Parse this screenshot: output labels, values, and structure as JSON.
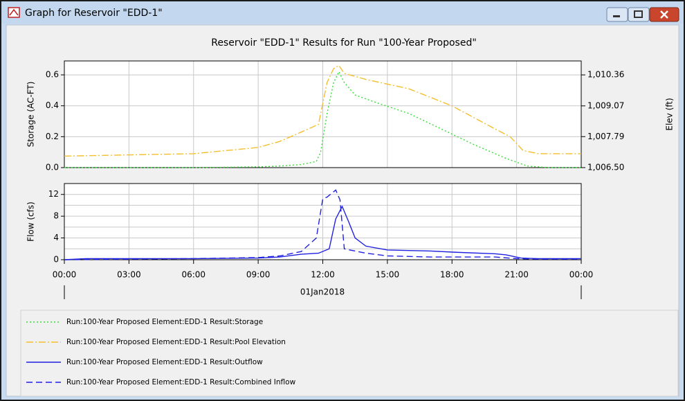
{
  "window": {
    "title": "Graph for Reservoir \"EDD-1\""
  },
  "chart_data": [
    {
      "type": "line",
      "title": "Reservoir \"EDD-1\" Results for Run \"100-Year Proposed\"",
      "y_label": "Storage (AC-FT)",
      "y2_label": "Elev (ft)",
      "xlim": [
        0,
        24
      ],
      "ylim": [
        0,
        0.69
      ],
      "yticks": [
        {
          "value": 0,
          "label": "0.0"
        },
        0.2,
        0.4,
        0.6
      ],
      "y2lim": [
        1006.5,
        1010.94
      ],
      "y2ticks": [
        {
          "value": 1006.5,
          "label": "1,006.50"
        },
        {
          "value": 1007.79,
          "label": "1,007.79"
        },
        {
          "value": 1009.07,
          "label": "1,009.07"
        },
        {
          "value": 1010.36,
          "label": "1,010.36"
        }
      ],
      "grid": true,
      "series": [
        {
          "name": "Run:100-Year Proposed Element:EDD-1 Result:Storage",
          "color": "#33dd33",
          "style": "dotted",
          "x": [
            0,
            6,
            9,
            10,
            11,
            11.7,
            11.9,
            12.2,
            12.5,
            12.75,
            13,
            13.5,
            14.5,
            16,
            17.5,
            19,
            20.5,
            21.5,
            22.5,
            24
          ],
          "values": [
            0,
            0,
            0.005,
            0.01,
            0.02,
            0.04,
            0.1,
            0.35,
            0.55,
            0.62,
            0.55,
            0.47,
            0.42,
            0.35,
            0.25,
            0.15,
            0.06,
            0.01,
            0,
            0
          ]
        },
        {
          "name": "Run:100-Year Proposed Element:EDD-1 Result:Pool Elevation",
          "color": "#f5be2c",
          "style": "dash-dot",
          "axis": "y2",
          "x": [
            0,
            6,
            9,
            10,
            11,
            11.8,
            12.2,
            12.5,
            12.75,
            13,
            14,
            16,
            18,
            20,
            20.7,
            21.3,
            22,
            24
          ],
          "values": [
            1006.98,
            1007.08,
            1007.34,
            1007.59,
            1007.98,
            1008.3,
            1010.04,
            1010.62,
            1010.75,
            1010.42,
            1010.17,
            1009.78,
            1009.07,
            1008.11,
            1007.79,
            1007.21,
            1007.08,
            1007.08
          ]
        }
      ]
    },
    {
      "type": "line",
      "y_label": "Flow (cfs)",
      "x_label": "01Jan2018",
      "xlim": [
        0,
        24
      ],
      "xticks": [
        {
          "value": 0,
          "label": "00:00"
        },
        {
          "value": 3,
          "label": "03:00"
        },
        {
          "value": 6,
          "label": "06:00"
        },
        {
          "value": 9,
          "label": "09:00"
        },
        {
          "value": 12,
          "label": "12:00"
        },
        {
          "value": 15,
          "label": "15:00"
        },
        {
          "value": 18,
          "label": "18:00"
        },
        {
          "value": 21,
          "label": "21:00"
        },
        {
          "value": 24,
          "label": "00:00"
        }
      ],
      "ylim": [
        0,
        14
      ],
      "yticks": [
        0,
        4,
        8,
        12
      ],
      "minor_yticks": [
        2,
        6,
        10
      ],
      "grid": true,
      "series": [
        {
          "name": "Run:100-Year Proposed Element:EDD-1 Result:Outflow",
          "color": "#2020e0",
          "style": "solid",
          "x": [
            0,
            1,
            6,
            9,
            10,
            11,
            11.8,
            12.3,
            12.6,
            12.9,
            13.2,
            13.5,
            14,
            15,
            17,
            18,
            20,
            20.5,
            21.2,
            22,
            24
          ],
          "values": [
            0,
            0.2,
            0.2,
            0.3,
            0.5,
            1,
            1.2,
            2,
            7.5,
            9.8,
            7,
            4,
            2.5,
            1.8,
            1.6,
            1.4,
            1.1,
            0.9,
            0.3,
            0.2,
            0.2
          ]
        },
        {
          "name": "Run:100-Year Proposed Element:EDD-1 Result:Combined Inflow",
          "color": "#2020e0",
          "style": "dashed",
          "x": [
            0,
            6,
            9,
            10,
            11,
            11.7,
            12,
            12.2,
            12.6,
            12.8,
            13,
            14,
            15,
            17,
            20,
            21,
            22,
            24
          ],
          "values": [
            0,
            0.2,
            0.4,
            0.7,
            1.5,
            4,
            11.2,
            11.5,
            12.8,
            11,
            2,
            1.2,
            0.7,
            0.5,
            0.5,
            0.2,
            0.1,
            0.1
          ]
        }
      ]
    }
  ]
}
